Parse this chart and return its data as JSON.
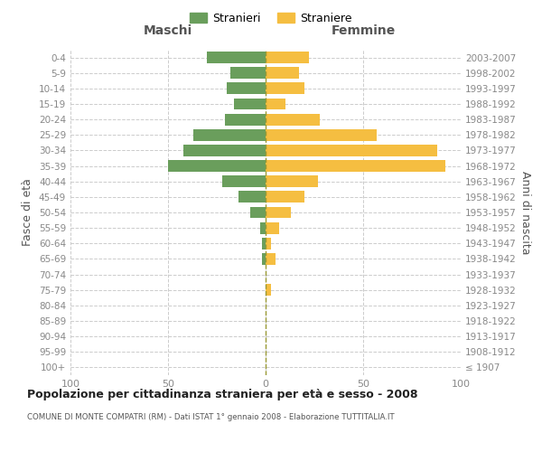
{
  "age_groups": [
    "100+",
    "95-99",
    "90-94",
    "85-89",
    "80-84",
    "75-79",
    "70-74",
    "65-69",
    "60-64",
    "55-59",
    "50-54",
    "45-49",
    "40-44",
    "35-39",
    "30-34",
    "25-29",
    "20-24",
    "15-19",
    "10-14",
    "5-9",
    "0-4"
  ],
  "birth_years": [
    "≤ 1907",
    "1908-1912",
    "1913-1917",
    "1918-1922",
    "1923-1927",
    "1928-1932",
    "1933-1937",
    "1938-1942",
    "1943-1947",
    "1948-1952",
    "1953-1957",
    "1958-1962",
    "1963-1967",
    "1968-1972",
    "1973-1977",
    "1978-1982",
    "1983-1987",
    "1988-1992",
    "1993-1997",
    "1998-2002",
    "2003-2007"
  ],
  "maschi": [
    0,
    0,
    0,
    0,
    0,
    0,
    0,
    2,
    2,
    3,
    8,
    14,
    22,
    50,
    42,
    37,
    21,
    16,
    20,
    18,
    30
  ],
  "femmine": [
    0,
    0,
    0,
    0,
    0,
    3,
    0,
    5,
    3,
    7,
    13,
    20,
    27,
    92,
    88,
    57,
    28,
    10,
    20,
    17,
    22
  ],
  "color_maschi": "#6a9e5c",
  "color_femmine": "#f5be41",
  "title": "Popolazione per cittadinanza straniera per età e sesso - 2008",
  "subtitle": "COMUNE DI MONTE COMPATRI (RM) - Dati ISTAT 1° gennaio 2008 - Elaborazione TUTTITALIA.IT",
  "ylabel_left": "Fasce di età",
  "ylabel_right": "Anni di nascita",
  "xlabel_left": "Maschi",
  "xlabel_right": "Femmine",
  "legend_maschi": "Stranieri",
  "legend_femmine": "Straniere",
  "xlim": 100,
  "bg_color": "#ffffff",
  "grid_color": "#cccccc",
  "axis_label_color": "#555555",
  "tick_label_color": "#888888",
  "bar_height": 0.75
}
